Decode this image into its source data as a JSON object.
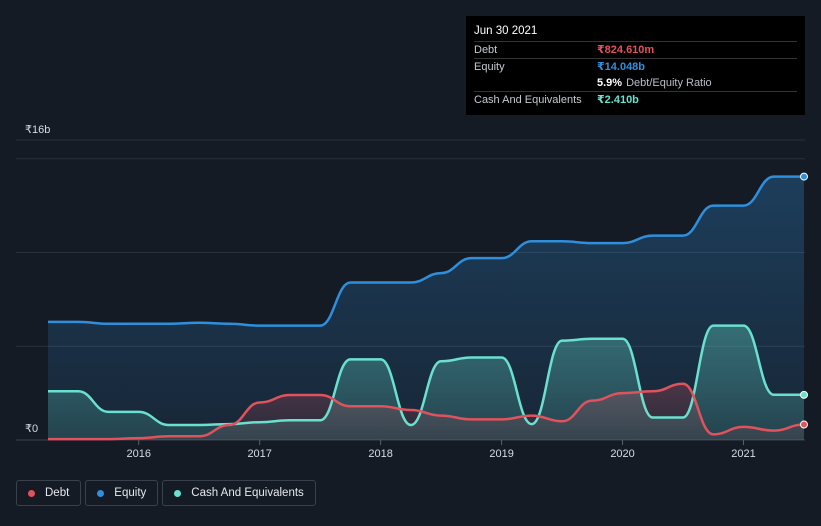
{
  "tooltip": {
    "date": "Jun 30 2021",
    "debt_label": "Debt",
    "debt_value": "₹824.610m",
    "equity_label": "Equity",
    "equity_value": "₹14.048b",
    "ratio_pct": "5.9%",
    "ratio_label": "Debt/Equity Ratio",
    "cash_label": "Cash And Equivalents",
    "cash_value": "₹2.410b"
  },
  "legend": [
    {
      "label": "Debt",
      "color": "#e0525c"
    },
    {
      "label": "Equity",
      "color": "#2f8fdc"
    },
    {
      "label": "Cash And Equivalents",
      "color": "#6ae0cf"
    }
  ],
  "colors": {
    "background": "#151b24",
    "debt": "#e0525c",
    "equity": "#2f8fdc",
    "cash": "#6ae0cf",
    "grid": "#2a313b"
  },
  "chart_data": {
    "type": "area",
    "units": "₹ billions",
    "y_axis_labels": [
      "₹16b",
      "₹0"
    ],
    "ylim": [
      0,
      16
    ],
    "xlim": [
      2015.25,
      2021.5
    ],
    "x_ticks": [
      {
        "value": 2016,
        "label": "2016"
      },
      {
        "value": 2017,
        "label": "2017"
      },
      {
        "value": 2018,
        "label": "2018"
      },
      {
        "value": 2019,
        "label": "2019"
      },
      {
        "value": 2020,
        "label": "2020"
      },
      {
        "value": 2021,
        "label": "2021"
      }
    ],
    "series": [
      {
        "name": "Equity",
        "color": "#2f8fdc",
        "points": [
          [
            2015.25,
            6.3
          ],
          [
            2015.5,
            6.3
          ],
          [
            2015.75,
            6.2
          ],
          [
            2016.25,
            6.2
          ],
          [
            2016.5,
            6.25
          ],
          [
            2016.75,
            6.2
          ],
          [
            2017.0,
            6.1
          ],
          [
            2017.5,
            6.1
          ],
          [
            2017.75,
            8.4
          ],
          [
            2018.25,
            8.4
          ],
          [
            2018.5,
            8.9
          ],
          [
            2018.75,
            9.7
          ],
          [
            2019.0,
            9.7
          ],
          [
            2019.25,
            10.6
          ],
          [
            2019.5,
            10.6
          ],
          [
            2019.75,
            10.5
          ],
          [
            2020.0,
            10.5
          ],
          [
            2020.25,
            10.9
          ],
          [
            2020.5,
            10.9
          ],
          [
            2020.75,
            12.5
          ],
          [
            2021.0,
            12.5
          ],
          [
            2021.25,
            14.05
          ],
          [
            2021.5,
            14.048
          ]
        ]
      },
      {
        "name": "Cash And Equivalents",
        "color": "#6ae0cf",
        "points": [
          [
            2015.25,
            2.6
          ],
          [
            2015.5,
            2.6
          ],
          [
            2015.75,
            1.5
          ],
          [
            2016.0,
            1.5
          ],
          [
            2016.25,
            0.8
          ],
          [
            2016.5,
            0.8
          ],
          [
            2016.75,
            0.85
          ],
          [
            2017.0,
            0.95
          ],
          [
            2017.25,
            1.05
          ],
          [
            2017.5,
            1.05
          ],
          [
            2017.75,
            4.3
          ],
          [
            2018.0,
            4.3
          ],
          [
            2018.25,
            0.8
          ],
          [
            2018.5,
            4.2
          ],
          [
            2018.75,
            4.4
          ],
          [
            2019.0,
            4.4
          ],
          [
            2019.25,
            0.85
          ],
          [
            2019.5,
            5.3
          ],
          [
            2019.75,
            5.4
          ],
          [
            2020.0,
            5.4
          ],
          [
            2020.25,
            1.2
          ],
          [
            2020.5,
            1.2
          ],
          [
            2020.75,
            6.1
          ],
          [
            2021.0,
            6.1
          ],
          [
            2021.25,
            2.41
          ],
          [
            2021.5,
            2.41
          ]
        ]
      },
      {
        "name": "Debt",
        "color": "#e0525c",
        "points": [
          [
            2015.25,
            0.05
          ],
          [
            2015.75,
            0.05
          ],
          [
            2016.0,
            0.1
          ],
          [
            2016.25,
            0.2
          ],
          [
            2016.5,
            0.2
          ],
          [
            2016.75,
            0.8
          ],
          [
            2017.0,
            2.0
          ],
          [
            2017.25,
            2.4
          ],
          [
            2017.5,
            2.4
          ],
          [
            2017.75,
            1.8
          ],
          [
            2018.0,
            1.8
          ],
          [
            2018.25,
            1.6
          ],
          [
            2018.5,
            1.3
          ],
          [
            2018.75,
            1.1
          ],
          [
            2019.0,
            1.1
          ],
          [
            2019.25,
            1.3
          ],
          [
            2019.5,
            1.0
          ],
          [
            2019.75,
            2.1
          ],
          [
            2020.0,
            2.5
          ],
          [
            2020.25,
            2.6
          ],
          [
            2020.5,
            3.0
          ],
          [
            2020.75,
            0.3
          ],
          [
            2021.0,
            0.7
          ],
          [
            2021.25,
            0.5
          ],
          [
            2021.5,
            0.82461
          ]
        ]
      }
    ]
  }
}
